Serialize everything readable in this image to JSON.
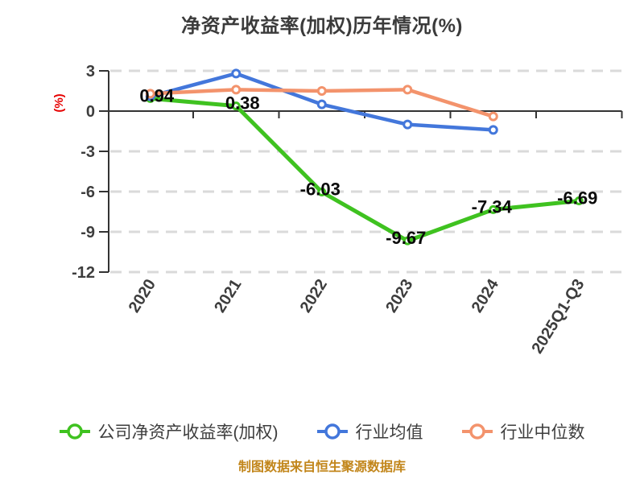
{
  "title": "净资产收益率(加权)历年情况(%)",
  "footer": "制图数据来自恒生聚源数据库",
  "colors": {
    "company_green": "#3FC220",
    "industry_avg_blue": "#4377DB",
    "industry_median_orange": "#F3936C",
    "grid": "#DADADA",
    "axis": "#333333",
    "tick_text": "#3d3d3d",
    "data_label": "#0a0a0a",
    "title_text": "#3b3b3b",
    "y_axis_label_red": "#E60000",
    "footer_gold": "#C2861B",
    "background": "#ffffff"
  },
  "chart_data": {
    "type": "line",
    "title": "净资产收益率(加权)历年情况(%)",
    "ylabel": "(%)",
    "ylim": [
      -12,
      3
    ],
    "yticks": [
      3,
      0,
      -3,
      -6,
      -9,
      -12
    ],
    "grid": "horizontal-dashed",
    "legend_position": "bottom",
    "categories": [
      "2020",
      "2021",
      "2022",
      "2023",
      "2024",
      "2025Q1-Q3"
    ],
    "series": [
      {
        "name": "公司净资产收益率(加权)",
        "color": "#3FC220",
        "values": [
          0.94,
          0.38,
          -6.03,
          -9.67,
          -7.34,
          -6.69
        ],
        "labels": [
          "0.94",
          "0.38",
          "-6.03",
          "-9.67",
          "-7.34",
          "-6.69"
        ]
      },
      {
        "name": "行业均值",
        "color": "#4377DB",
        "values": [
          1.1,
          2.8,
          0.5,
          -1.0,
          -1.4,
          null
        ],
        "labels": []
      },
      {
        "name": "行业中位数",
        "color": "#F3936C",
        "values": [
          1.3,
          1.6,
          1.5,
          1.6,
          -0.4,
          null
        ],
        "labels": []
      }
    ]
  }
}
